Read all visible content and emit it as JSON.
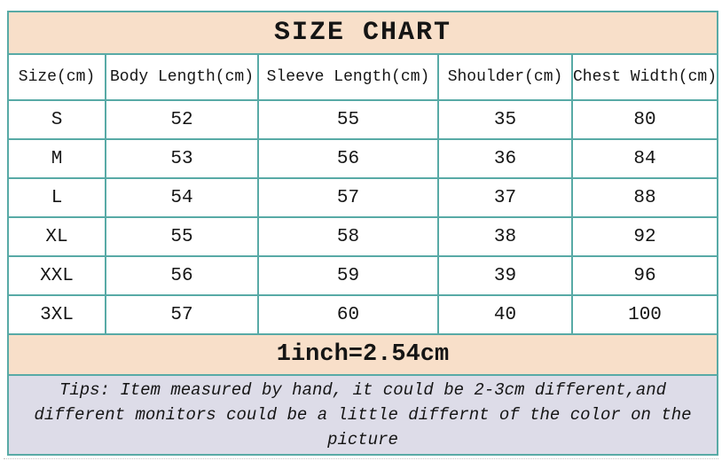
{
  "title": "SIZE CHART",
  "chart_data": {
    "type": "table",
    "title": "SIZE CHART",
    "columns": [
      "Size(cm)",
      "Body Length(cm)",
      "Sleeve Length(cm)",
      "Shoulder(cm)",
      "Chest Width(cm)"
    ],
    "rows": [
      [
        "S",
        "52",
        "55",
        "35",
        "80"
      ],
      [
        "M",
        "53",
        "56",
        "36",
        "84"
      ],
      [
        "L",
        "54",
        "57",
        "37",
        "88"
      ],
      [
        "XL",
        "55",
        "58",
        "38",
        "92"
      ],
      [
        "XXL",
        "56",
        "59",
        "39",
        "96"
      ],
      [
        "3XL",
        "57",
        "60",
        "40",
        "100"
      ]
    ],
    "conversion_note": "1inch=2.54cm",
    "tips": "Tips: Item measured by hand, it could be 2-3cm different,and different monitors could be a little differnt of the color on the picture"
  },
  "colors": {
    "title_band_bg": "#f8dfc9",
    "grid_border": "#58aaa6",
    "tips_band_bg": "#dddce8",
    "text": "#151515",
    "page_bg": "#ffffff"
  }
}
